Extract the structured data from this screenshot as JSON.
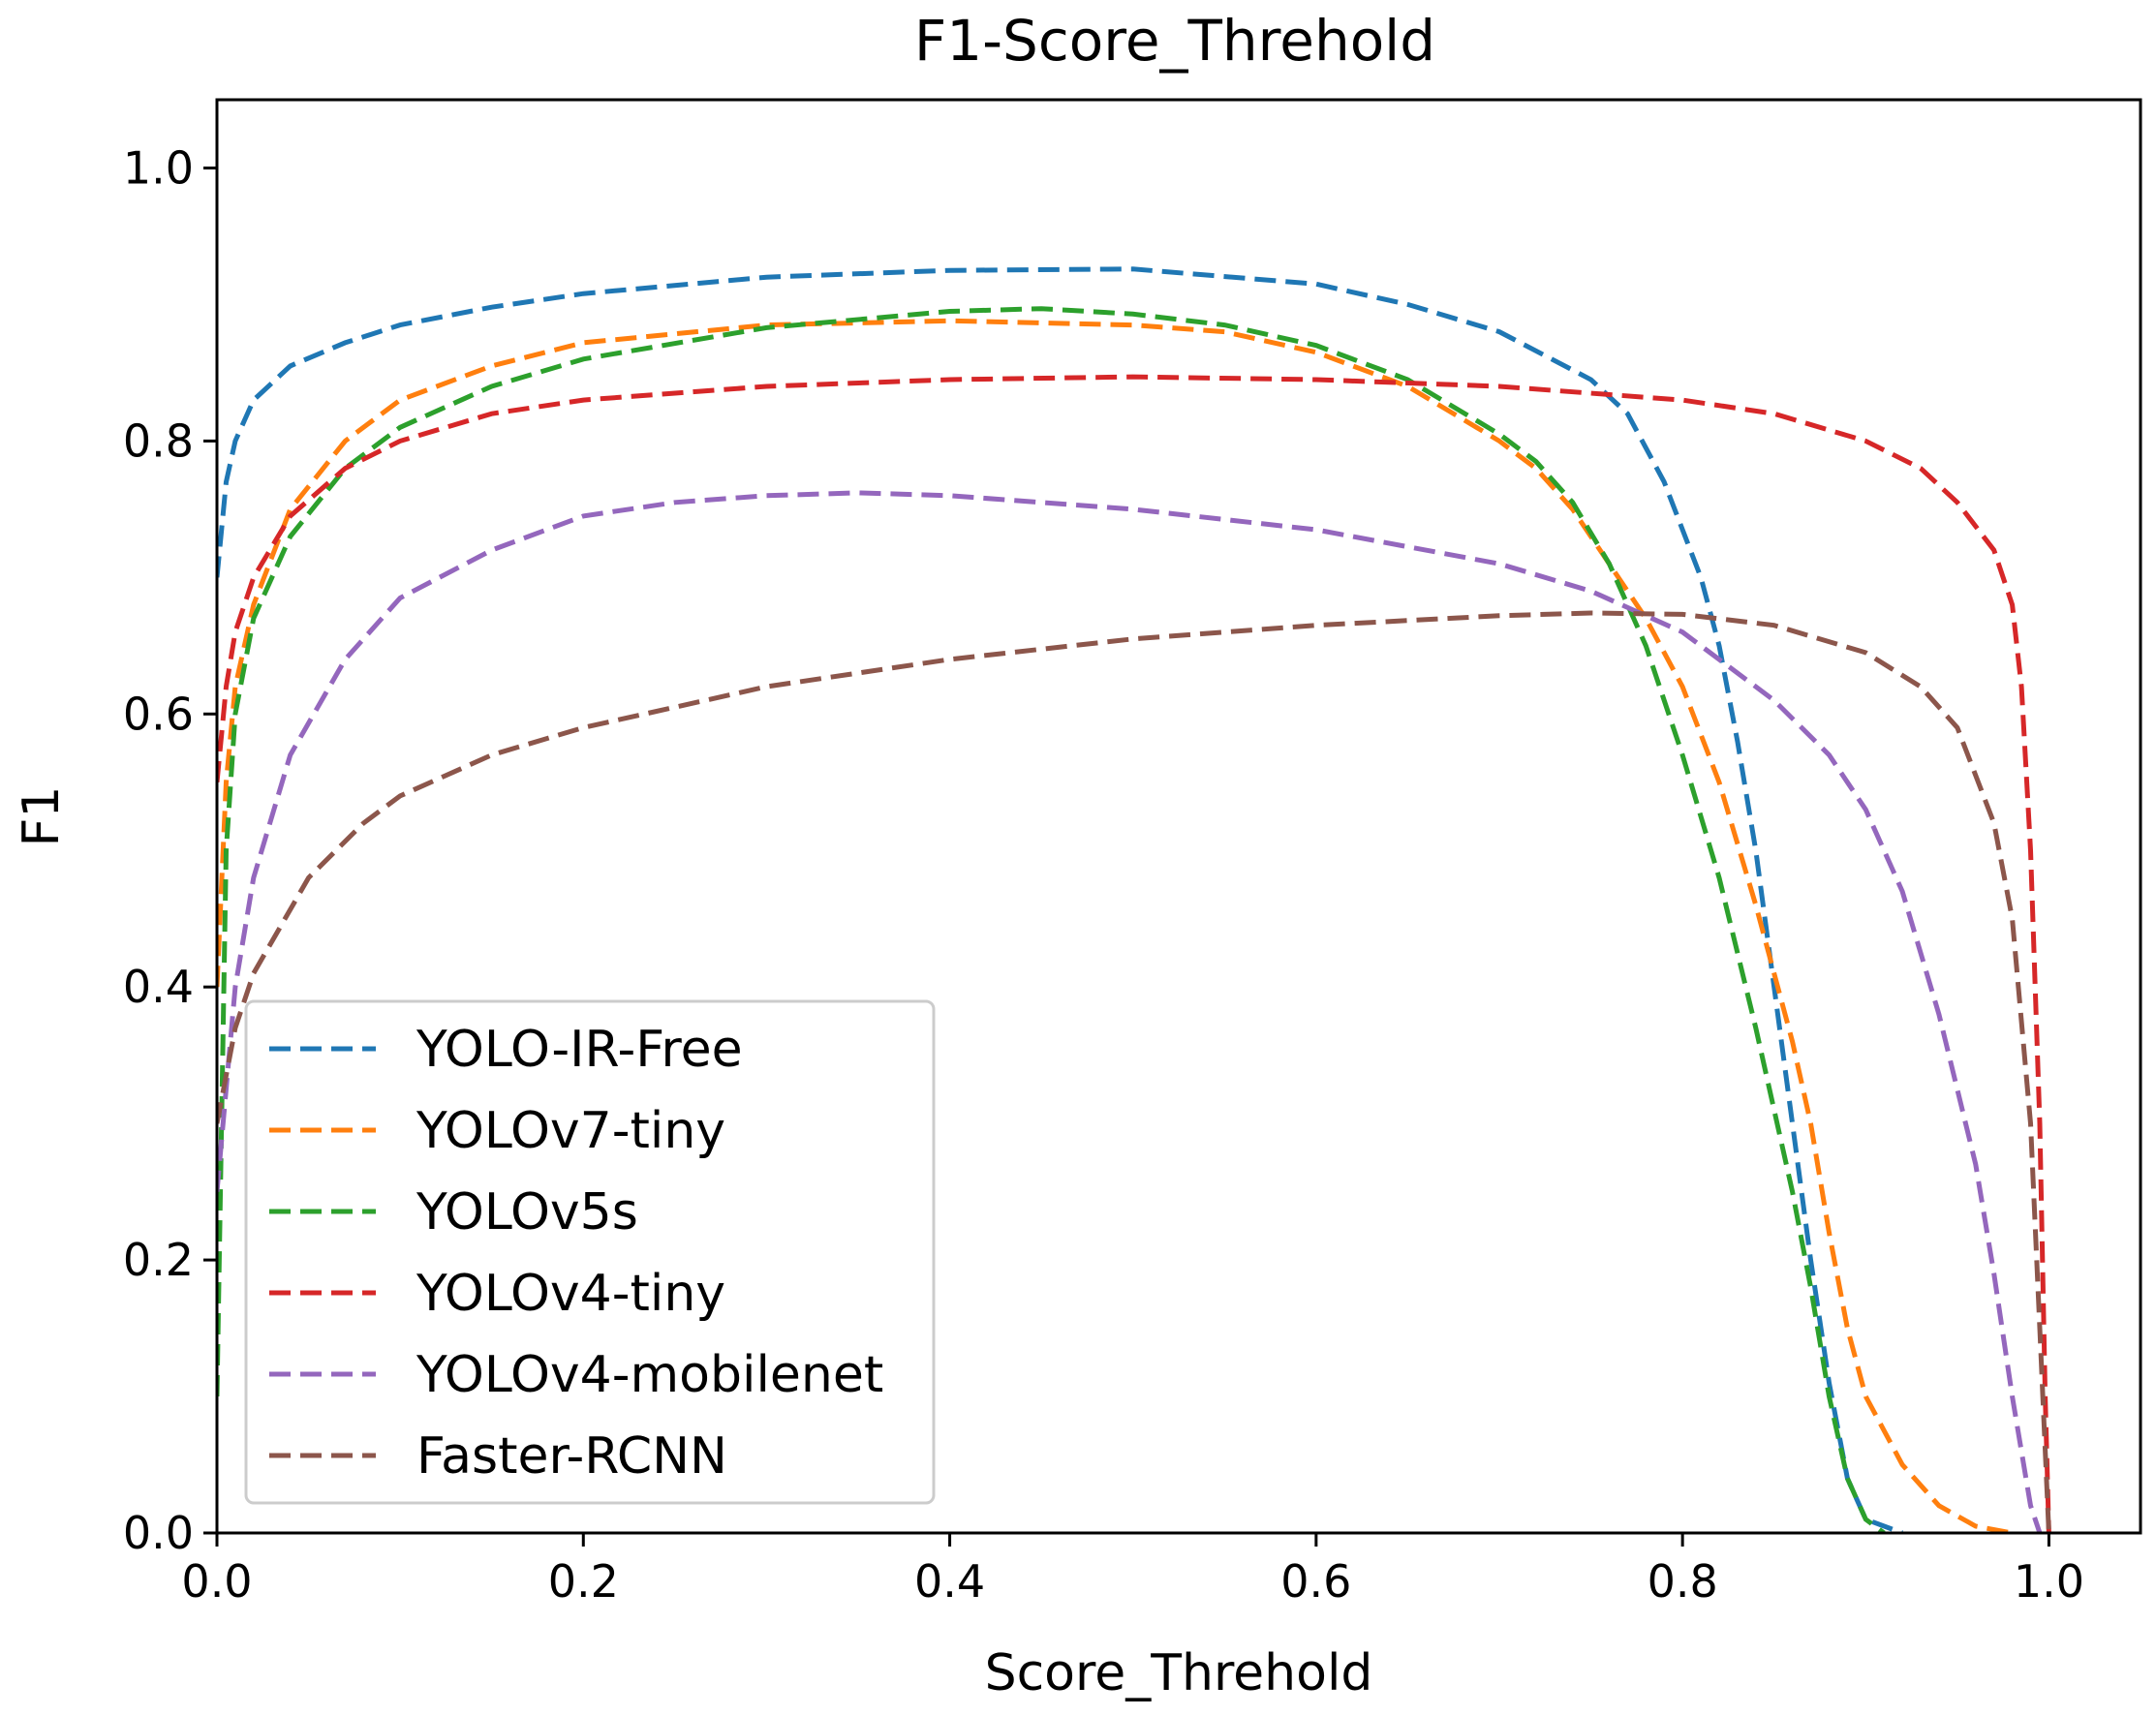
{
  "chart_data": {
    "type": "line",
    "title": "F1-Score_Threhold",
    "xlabel": "Score_Threhold",
    "ylabel": "F1",
    "xlim": [
      0.0,
      1.05
    ],
    "ylim": [
      0.0,
      1.05
    ],
    "x_ticks": [
      "0.0",
      "0.2",
      "0.4",
      "0.6",
      "0.8",
      "1.0"
    ],
    "y_ticks": [
      "0.0",
      "0.2",
      "0.4",
      "0.6",
      "0.8",
      "1.0"
    ],
    "grid": false,
    "legend_position": "lower-left",
    "line_style": "dashed",
    "series": [
      {
        "name": "YOLO-IR-Free",
        "color": "#1f77b4",
        "points": [
          [
            0,
            0.7
          ],
          [
            0.005,
            0.77
          ],
          [
            0.01,
            0.8
          ],
          [
            0.02,
            0.83
          ],
          [
            0.04,
            0.855
          ],
          [
            0.07,
            0.872
          ],
          [
            0.1,
            0.885
          ],
          [
            0.15,
            0.898
          ],
          [
            0.2,
            0.908
          ],
          [
            0.3,
            0.92
          ],
          [
            0.4,
            0.925
          ],
          [
            0.5,
            0.926
          ],
          [
            0.6,
            0.915
          ],
          [
            0.65,
            0.9
          ],
          [
            0.7,
            0.88
          ],
          [
            0.75,
            0.845
          ],
          [
            0.77,
            0.82
          ],
          [
            0.79,
            0.77
          ],
          [
            0.81,
            0.7
          ],
          [
            0.82,
            0.65
          ],
          [
            0.83,
            0.58
          ],
          [
            0.84,
            0.5
          ],
          [
            0.85,
            0.4
          ],
          [
            0.86,
            0.3
          ],
          [
            0.87,
            0.2
          ],
          [
            0.88,
            0.11
          ],
          [
            0.89,
            0.04
          ],
          [
            0.9,
            0.01
          ],
          [
            0.92,
            0.0
          ]
        ]
      },
      {
        "name": "YOLOv7-tiny",
        "color": "#ff7f0e",
        "points": [
          [
            0,
            0.4
          ],
          [
            0.005,
            0.55
          ],
          [
            0.01,
            0.62
          ],
          [
            0.02,
            0.68
          ],
          [
            0.04,
            0.75
          ],
          [
            0.07,
            0.8
          ],
          [
            0.1,
            0.83
          ],
          [
            0.15,
            0.855
          ],
          [
            0.2,
            0.872
          ],
          [
            0.3,
            0.885
          ],
          [
            0.4,
            0.888
          ],
          [
            0.5,
            0.885
          ],
          [
            0.55,
            0.88
          ],
          [
            0.6,
            0.865
          ],
          [
            0.65,
            0.84
          ],
          [
            0.7,
            0.8
          ],
          [
            0.72,
            0.78
          ],
          [
            0.74,
            0.75
          ],
          [
            0.76,
            0.71
          ],
          [
            0.78,
            0.67
          ],
          [
            0.8,
            0.62
          ],
          [
            0.82,
            0.55
          ],
          [
            0.84,
            0.46
          ],
          [
            0.86,
            0.36
          ],
          [
            0.87,
            0.3
          ],
          [
            0.88,
            0.22
          ],
          [
            0.89,
            0.15
          ],
          [
            0.9,
            0.1
          ],
          [
            0.92,
            0.05
          ],
          [
            0.94,
            0.02
          ],
          [
            0.96,
            0.005
          ],
          [
            0.98,
            0.0
          ]
        ]
      },
      {
        "name": "YOLOv5s",
        "color": "#2ca02c",
        "points": [
          [
            0,
            0.1
          ],
          [
            0.005,
            0.5
          ],
          [
            0.01,
            0.6
          ],
          [
            0.02,
            0.67
          ],
          [
            0.04,
            0.73
          ],
          [
            0.07,
            0.78
          ],
          [
            0.1,
            0.81
          ],
          [
            0.15,
            0.84
          ],
          [
            0.2,
            0.86
          ],
          [
            0.3,
            0.883
          ],
          [
            0.4,
            0.895
          ],
          [
            0.45,
            0.897
          ],
          [
            0.5,
            0.893
          ],
          [
            0.55,
            0.885
          ],
          [
            0.6,
            0.87
          ],
          [
            0.65,
            0.845
          ],
          [
            0.7,
            0.805
          ],
          [
            0.72,
            0.785
          ],
          [
            0.74,
            0.755
          ],
          [
            0.76,
            0.71
          ],
          [
            0.78,
            0.65
          ],
          [
            0.8,
            0.57
          ],
          [
            0.82,
            0.48
          ],
          [
            0.84,
            0.37
          ],
          [
            0.86,
            0.25
          ],
          [
            0.87,
            0.18
          ],
          [
            0.88,
            0.1
          ],
          [
            0.89,
            0.04
          ],
          [
            0.9,
            0.01
          ],
          [
            0.91,
            0.0
          ]
        ]
      },
      {
        "name": "YOLOv4-tiny",
        "color": "#d62728",
        "points": [
          [
            0,
            0.55
          ],
          [
            0.005,
            0.62
          ],
          [
            0.01,
            0.66
          ],
          [
            0.02,
            0.7
          ],
          [
            0.04,
            0.745
          ],
          [
            0.07,
            0.78
          ],
          [
            0.1,
            0.8
          ],
          [
            0.15,
            0.82
          ],
          [
            0.2,
            0.83
          ],
          [
            0.3,
            0.84
          ],
          [
            0.4,
            0.845
          ],
          [
            0.5,
            0.847
          ],
          [
            0.6,
            0.845
          ],
          [
            0.7,
            0.84
          ],
          [
            0.8,
            0.83
          ],
          [
            0.85,
            0.82
          ],
          [
            0.9,
            0.8
          ],
          [
            0.93,
            0.78
          ],
          [
            0.95,
            0.755
          ],
          [
            0.97,
            0.72
          ],
          [
            0.98,
            0.68
          ],
          [
            0.985,
            0.62
          ],
          [
            0.99,
            0.5
          ],
          [
            0.995,
            0.3
          ],
          [
            0.998,
            0.1
          ],
          [
            1.0,
            0.0
          ]
        ]
      },
      {
        "name": "YOLOv4-mobilenet",
        "color": "#9467bd",
        "points": [
          [
            0,
            0.25
          ],
          [
            0.01,
            0.4
          ],
          [
            0.02,
            0.48
          ],
          [
            0.04,
            0.57
          ],
          [
            0.07,
            0.64
          ],
          [
            0.1,
            0.685
          ],
          [
            0.15,
            0.72
          ],
          [
            0.2,
            0.745
          ],
          [
            0.25,
            0.755
          ],
          [
            0.3,
            0.76
          ],
          [
            0.35,
            0.762
          ],
          [
            0.4,
            0.76
          ],
          [
            0.5,
            0.75
          ],
          [
            0.6,
            0.735
          ],
          [
            0.7,
            0.71
          ],
          [
            0.75,
            0.69
          ],
          [
            0.8,
            0.66
          ],
          [
            0.85,
            0.61
          ],
          [
            0.88,
            0.57
          ],
          [
            0.9,
            0.53
          ],
          [
            0.92,
            0.47
          ],
          [
            0.94,
            0.38
          ],
          [
            0.96,
            0.27
          ],
          [
            0.97,
            0.19
          ],
          [
            0.98,
            0.1
          ],
          [
            0.99,
            0.02
          ],
          [
            0.995,
            0.0
          ]
        ]
      },
      {
        "name": "Faster-RCNN",
        "color": "#8c564b",
        "points": [
          [
            0,
            0.3
          ],
          [
            0.01,
            0.37
          ],
          [
            0.02,
            0.41
          ],
          [
            0.05,
            0.48
          ],
          [
            0.08,
            0.52
          ],
          [
            0.1,
            0.54
          ],
          [
            0.15,
            0.57
          ],
          [
            0.2,
            0.59
          ],
          [
            0.3,
            0.62
          ],
          [
            0.4,
            0.64
          ],
          [
            0.5,
            0.655
          ],
          [
            0.6,
            0.665
          ],
          [
            0.7,
            0.672
          ],
          [
            0.75,
            0.674
          ],
          [
            0.8,
            0.673
          ],
          [
            0.85,
            0.665
          ],
          [
            0.9,
            0.645
          ],
          [
            0.93,
            0.62
          ],
          [
            0.95,
            0.59
          ],
          [
            0.97,
            0.52
          ],
          [
            0.98,
            0.45
          ],
          [
            0.99,
            0.3
          ],
          [
            0.995,
            0.15
          ],
          [
            1.0,
            0.0
          ]
        ]
      }
    ]
  }
}
